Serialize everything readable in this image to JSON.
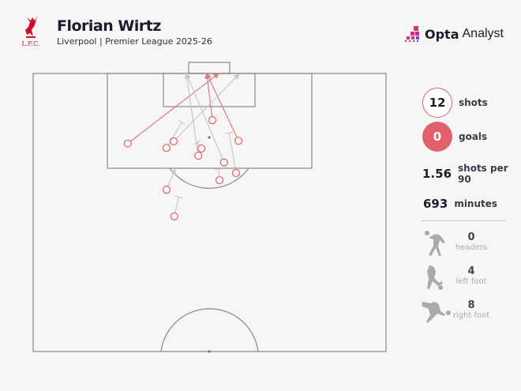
{
  "header": {
    "title": "Florian Wirtz",
    "subtitle": "Liverpool | Premier League 2025-26",
    "club_logo_text": "L.F.C.",
    "brand_bold": "Opta",
    "brand_light": "Analyst"
  },
  "colors": {
    "accent": "#e0606b",
    "on_target": "#e07a80",
    "other": "#c8c8c8",
    "pitch_line": "#888888"
  },
  "stats": {
    "shots": {
      "value": "12",
      "label": "shots"
    },
    "goals": {
      "value": "0",
      "label": "goals"
    },
    "per90": {
      "value": "1.56",
      "label": "shots per 90"
    },
    "minutes": {
      "value": "693",
      "label": "minutes"
    },
    "body": [
      {
        "value": "0",
        "label": "headers",
        "icon": "header-icon"
      },
      {
        "value": "4",
        "label": "left foot",
        "icon": "left-foot-icon"
      },
      {
        "value": "8",
        "label": "right foot",
        "icon": "right-foot-icon"
      }
    ]
  },
  "chart_data": {
    "type": "scatter",
    "pitch": "opta half pitch (attacking)",
    "shots": [
      {
        "x": 87.4,
        "y": 26.8,
        "end_x": 100,
        "end_y": 52.6,
        "outcome": "on_target"
      },
      {
        "x": 91.6,
        "y": 50.8,
        "end_x": 100,
        "end_y": 49.2,
        "outcome": "on_target"
      },
      {
        "x": 87.9,
        "y": 58.2,
        "end_x": 100,
        "end_y": 49.2,
        "outcome": "on_target"
      },
      {
        "x": 87.8,
        "y": 39.8,
        "end_x": 99.9,
        "end_y": 58.4,
        "outcome": "off_target"
      },
      {
        "x": 86.6,
        "y": 37.8,
        "end_x": 91.2,
        "end_y": 42.1,
        "outcome": "blocked"
      },
      {
        "x": 86.5,
        "y": 47.7,
        "end_x": 87.6,
        "end_y": 46.5,
        "outcome": "blocked"
      },
      {
        "x": 85.2,
        "y": 46.8,
        "end_x": 100,
        "end_y": 43.4,
        "outcome": "off_target"
      },
      {
        "x": 84.0,
        "y": 54.1,
        "end_x": 100,
        "end_y": 43.4,
        "outcome": "off_target"
      },
      {
        "x": 82.1,
        "y": 57.5,
        "end_x": 89.3,
        "end_y": 55.5,
        "outcome": "blocked"
      },
      {
        "x": 80.8,
        "y": 52.8,
        "end_x": 82.8,
        "end_y": 52.6,
        "outcome": "blocked"
      },
      {
        "x": 79.1,
        "y": 37.8,
        "end_x": 82.8,
        "end_y": 40.3,
        "outcome": "off_target"
      },
      {
        "x": 74.3,
        "y": 40.0,
        "end_x": 77.8,
        "end_y": 41.2,
        "outcome": "blocked"
      }
    ]
  }
}
